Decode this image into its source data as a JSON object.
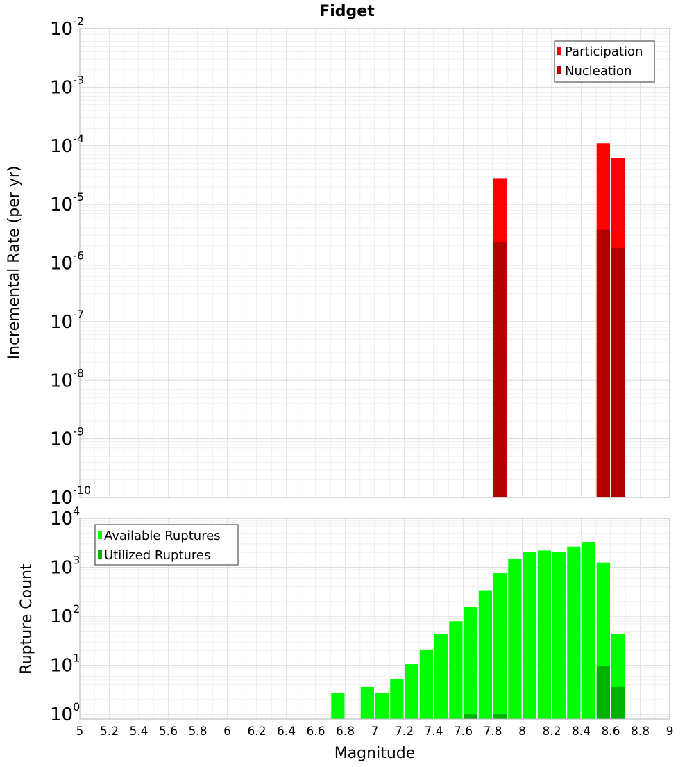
{
  "chart_data": [
    {
      "type": "bar",
      "title": "Fidget",
      "xlabel": "",
      "ylabel": "Incremental Rate (per yr)",
      "yscale": "log",
      "ylim": [
        1e-10,
        0.01
      ],
      "xlim": [
        5,
        9
      ],
      "ytick_labels": [
        {
          "base": "10",
          "exp": "-2"
        },
        {
          "base": "10",
          "exp": "-3"
        },
        {
          "base": "10",
          "exp": "-4"
        },
        {
          "base": "10",
          "exp": "-5"
        },
        {
          "base": "10",
          "exp": "-6"
        },
        {
          "base": "10",
          "exp": "-7"
        },
        {
          "base": "10",
          "exp": "-8"
        },
        {
          "base": "10",
          "exp": "-9"
        },
        {
          "base": "10",
          "exp": "-10"
        }
      ],
      "legend_position": "top-right",
      "grid": true,
      "series": [
        {
          "name": "Participation",
          "color": "#ff0000",
          "points": [
            {
              "x": 7.85,
              "y": 2.8e-05
            },
            {
              "x": 8.55,
              "y": 0.00011
            },
            {
              "x": 8.65,
              "y": 6.2e-05
            }
          ]
        },
        {
          "name": "Nucleation",
          "color": "#b20000",
          "points": [
            {
              "x": 7.85,
              "y": 2.3e-06
            },
            {
              "x": 8.55,
              "y": 3.7e-06
            },
            {
              "x": 8.65,
              "y": 1.8e-06
            }
          ]
        }
      ]
    },
    {
      "type": "bar",
      "title": "",
      "xlabel": "Magnitude",
      "ylabel": "Rupture Count",
      "yscale": "log",
      "ylim": [
        0.8,
        10000
      ],
      "xlim": [
        5,
        9
      ],
      "xtick_labels": [
        "5",
        "5.2",
        "5.4",
        "5.6",
        "5.8",
        "6",
        "6.2",
        "6.4",
        "6.6",
        "6.8",
        "7",
        "7.2",
        "7.4",
        "7.6",
        "7.8",
        "8",
        "8.2",
        "8.4",
        "8.6",
        "8.8",
        "9"
      ],
      "ytick_labels": [
        {
          "base": "10",
          "exp": "4"
        },
        {
          "base": "10",
          "exp": "3"
        },
        {
          "base": "10",
          "exp": "2"
        },
        {
          "base": "10",
          "exp": "1"
        },
        {
          "base": "10",
          "exp": "0"
        }
      ],
      "legend_position": "top-left",
      "grid": true,
      "series": [
        {
          "name": "Available Ruptures",
          "color": "#00ff00",
          "points": [
            {
              "x": 6.75,
              "y": 2.7
            },
            {
              "x": 6.95,
              "y": 3.6
            },
            {
              "x": 7.05,
              "y": 2.7
            },
            {
              "x": 7.15,
              "y": 5.3
            },
            {
              "x": 7.25,
              "y": 10.5
            },
            {
              "x": 7.35,
              "y": 21
            },
            {
              "x": 7.45,
              "y": 44
            },
            {
              "x": 7.55,
              "y": 79
            },
            {
              "x": 7.65,
              "y": 156
            },
            {
              "x": 7.75,
              "y": 340
            },
            {
              "x": 7.85,
              "y": 760
            },
            {
              "x": 7.95,
              "y": 1500
            },
            {
              "x": 8.05,
              "y": 2050
            },
            {
              "x": 8.15,
              "y": 2200
            },
            {
              "x": 8.25,
              "y": 2050
            },
            {
              "x": 8.35,
              "y": 2650
            },
            {
              "x": 8.45,
              "y": 3300
            },
            {
              "x": 8.55,
              "y": 1250
            },
            {
              "x": 8.65,
              "y": 43
            }
          ]
        },
        {
          "name": "Utilized Ruptures",
          "color": "#00b200",
          "points": [
            {
              "x": 7.65,
              "y": 1
            },
            {
              "x": 7.85,
              "y": 1
            },
            {
              "x": 8.55,
              "y": 9.8
            },
            {
              "x": 8.65,
              "y": 3.6
            }
          ]
        }
      ]
    }
  ]
}
